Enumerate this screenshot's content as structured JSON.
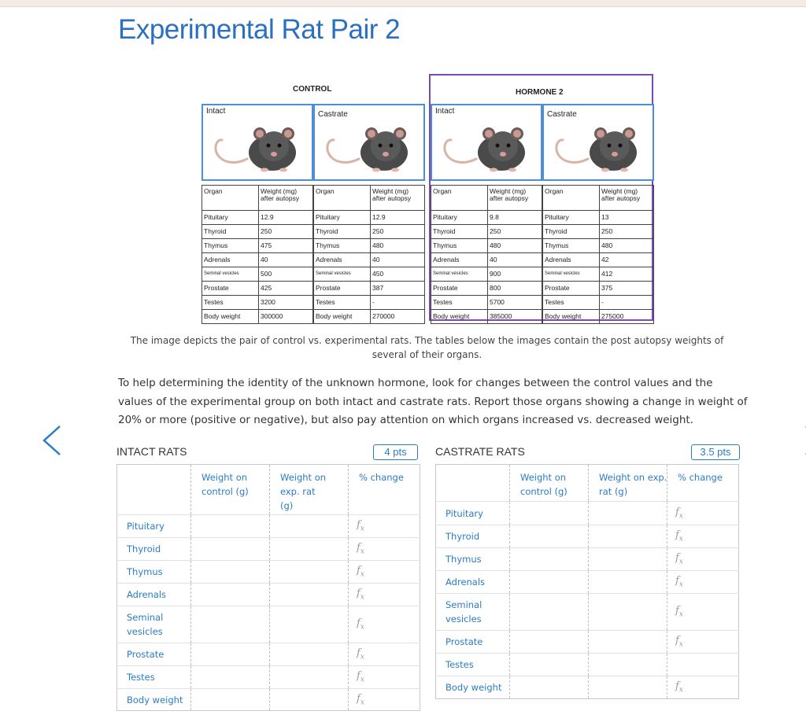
{
  "page": {
    "title": "Experimental Rat Pair 2"
  },
  "figure": {
    "control_label": "CONTROL",
    "hormone_label": "HORMONE 2",
    "panels": [
      {
        "label": "Intact"
      },
      {
        "label": "Castrate"
      },
      {
        "label": "Intact"
      },
      {
        "label": "Castrate"
      }
    ],
    "table_header": {
      "organ": "Organ",
      "weight_line1": "Weight (mg)",
      "weight_line2": "after autopsy"
    },
    "organs": [
      "Pituitary",
      "Thyroid",
      "Thymus",
      "Adrenals",
      "Seminal vesicles",
      "Prostate",
      "Testes",
      "Body weight"
    ],
    "tables": [
      {
        "values": [
          "12.9",
          "250",
          "475",
          "40",
          "500",
          "425",
          "3200",
          "300000"
        ]
      },
      {
        "values": [
          "12.9",
          "250",
          "480",
          "40",
          "450",
          "387",
          "-",
          "270000"
        ]
      },
      {
        "values": [
          "9.8",
          "250",
          "480",
          "40",
          "900",
          "800",
          "5700",
          "385000"
        ]
      },
      {
        "values": [
          "13",
          "250",
          "480",
          "42",
          "412",
          "375",
          "-",
          "275000"
        ]
      }
    ]
  },
  "caption": "The image  depicts the pair of control vs. experimental rats. The tables below the images contain the post autopsy weights of several of their organs.",
  "instructions": "To help determining the identity of the unknown hormone, look for changes between the control values and the values of the experimental group on both intact and castrate rats. Report those organs showing a change in weight of 20% or more (positive or negative), but also pay attention on which organs increased vs. decreased weight.",
  "intact": {
    "title": "INTACT RATS",
    "points": "4 pts",
    "col_control": "Weight on control (g)",
    "col_exp": "Weight on exp. rat (g)",
    "col_change": "% change",
    "rows": [
      "Pituitary",
      "Thyroid",
      "Thymus",
      "Adrenals",
      "Seminal vesicles",
      "Prostate",
      "Testes",
      "Body weight"
    ]
  },
  "castrate": {
    "title": "CASTRATE RATS",
    "points": "3.5 pts",
    "col_control": "Weight on control (g)",
    "col_exp": "Weight on exp. rat (g)",
    "col_change": "% change",
    "rows": [
      "Pituitary",
      "Thyroid",
      "Thymus",
      "Adrenals",
      "Seminal vesicles",
      "Prostate",
      "Testes",
      "Body weight"
    ]
  },
  "fx_symbol": "f",
  "fx_sub": "x",
  "icons": {
    "prev": "chevron-left-icon",
    "next": "chevron-right-icon",
    "accent": "#2a7cc7",
    "title_color": "#2a6fc0",
    "hormone_border": "#7a4ab5"
  }
}
